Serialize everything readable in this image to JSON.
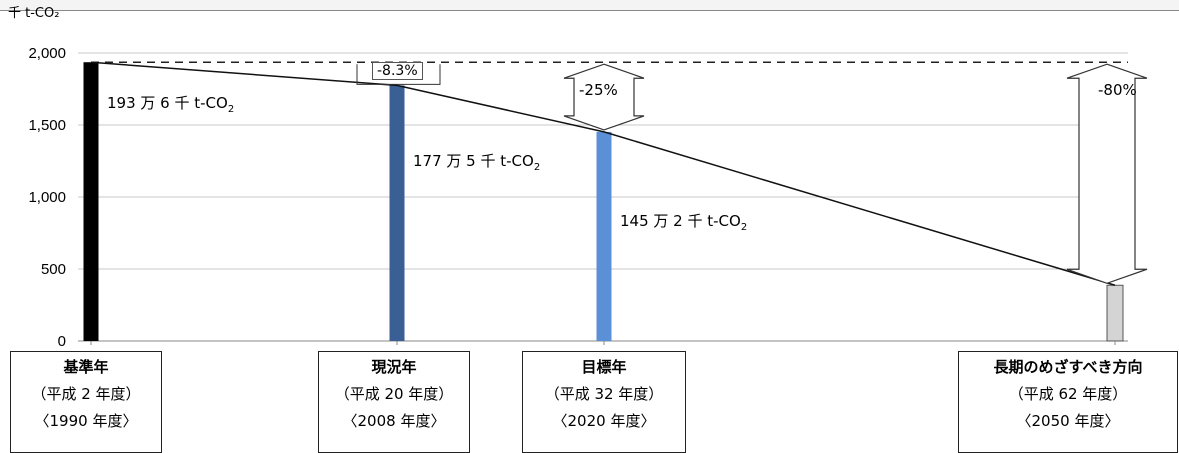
{
  "chart_data": {
    "type": "bar",
    "unit_label": "千 t-CO₂",
    "ylim": [
      0,
      2000
    ],
    "yticks": [
      "0",
      "500",
      "1,000",
      "1,500",
      "2,000"
    ],
    "ytick_values": [
      0,
      500,
      1000,
      1500,
      2000
    ],
    "grid": true,
    "categories": [
      {
        "l1": "基準年",
        "l2": "（平成 2 年度）",
        "l3": "〈1990 年度〉"
      },
      {
        "l1": "現況年",
        "l2": "（平成 20 年度）",
        "l3": "〈2008 年度〉"
      },
      {
        "l1": "目標年",
        "l2": "（平成 32 年度）",
        "l3": "〈2020 年度〉"
      },
      {
        "l1": "長期のめざすべき方向",
        "l2": "（平成 62 年度）",
        "l3": "〈2050 年度〉"
      }
    ],
    "values": [
      1936,
      1775,
      1452,
      387
    ],
    "colors": [
      "#000000",
      "#3a5f95",
      "#5b8fd6",
      "#d4d4d4"
    ],
    "data_labels": [
      {
        "pre": "193 万 6 千 t-CO",
        "sub": "2"
      },
      {
        "pre": "177 万 5 千 t-CO",
        "sub": "2"
      },
      {
        "pre": "145 万 2 千 t-CO",
        "sub": "2"
      }
    ],
    "reduction_labels": [
      "-8.3%",
      "-25%",
      "-80%"
    ],
    "baseline_value": 1936
  }
}
